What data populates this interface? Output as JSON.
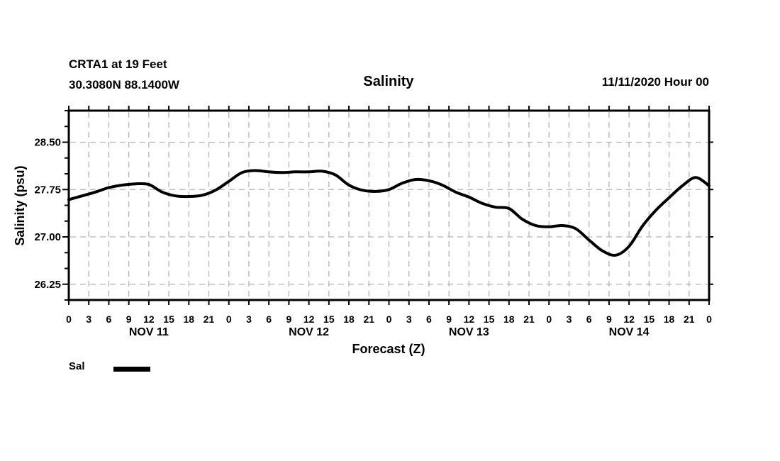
{
  "header": {
    "station_line1": "CRTA1 at 19 Feet",
    "station_line2": "30.3080N 88.1400W",
    "title": "Salinity",
    "datetime": "11/11/2020 Hour 00"
  },
  "axes": {
    "ylabel": "Salinity (psu)",
    "xlabel": "Forecast (Z)"
  },
  "legend": {
    "label": "Sal",
    "swatch_color": "#000000"
  },
  "colors": {
    "line": "#000000",
    "grid": "#b3b3b3",
    "frame": "#000000",
    "background": "#ffffff"
  },
  "chart_data": {
    "type": "line",
    "title": "Salinity",
    "xlabel": "Forecast (Z)",
    "ylabel": "Salinity (psu)",
    "ylim": [
      26.0,
      29.0
    ],
    "xlim_hours": [
      0,
      96
    ],
    "grid": true,
    "legend_position": "bottom-left",
    "y_major_ticks": [
      26.25,
      27.0,
      27.75,
      28.5
    ],
    "y_major_tick_labels": [
      "26.25",
      "27.00",
      "27.75",
      "28.50"
    ],
    "y_minor_step": 0.25,
    "x_tick_step_hours": 3,
    "x_ticks_hours": [
      0,
      3,
      6,
      9,
      12,
      15,
      18,
      21,
      24,
      27,
      30,
      33,
      36,
      39,
      42,
      45,
      48,
      51,
      54,
      57,
      60,
      63,
      66,
      69,
      72,
      75,
      78,
      81,
      84,
      87,
      90,
      93,
      96
    ],
    "x_tick_labels": [
      "0",
      "3",
      "6",
      "9",
      "12",
      "15",
      "18",
      "21",
      "0",
      "3",
      "6",
      "9",
      "12",
      "15",
      "18",
      "21",
      "0",
      "3",
      "6",
      "9",
      "12",
      "15",
      "18",
      "21",
      "0",
      "3",
      "6",
      "9",
      "12",
      "15",
      "18",
      "21",
      "0"
    ],
    "day_labels": [
      {
        "label": "NOV 11",
        "hour": 12
      },
      {
        "label": "NOV 12",
        "hour": 36
      },
      {
        "label": "NOV 13",
        "hour": 60
      },
      {
        "label": "NOV 14",
        "hour": 84
      }
    ],
    "series": [
      {
        "name": "Sal",
        "color": "#000000",
        "line_width": 4,
        "x_hours": [
          0,
          2,
          4,
          6,
          8,
          10,
          12,
          14,
          16,
          18,
          20,
          22,
          24,
          26,
          28,
          30,
          32,
          34,
          36,
          38,
          40,
          42,
          44,
          46,
          48,
          50,
          52,
          54,
          56,
          58,
          60,
          62,
          64,
          66,
          68,
          70,
          72,
          74,
          76,
          78,
          80,
          82,
          84,
          86,
          88,
          90,
          92,
          94,
          96
        ],
        "y_psu": [
          27.59,
          27.65,
          27.71,
          27.78,
          27.82,
          27.84,
          27.83,
          27.71,
          27.65,
          27.64,
          27.66,
          27.74,
          27.88,
          28.02,
          28.05,
          28.03,
          28.02,
          28.03,
          28.03,
          28.04,
          27.98,
          27.82,
          27.74,
          27.72,
          27.75,
          27.85,
          27.91,
          27.89,
          27.82,
          27.71,
          27.63,
          27.53,
          27.47,
          27.45,
          27.28,
          27.18,
          27.16,
          27.18,
          27.13,
          26.95,
          26.78,
          26.71,
          26.85,
          27.17,
          27.42,
          27.62,
          27.81,
          27.94,
          27.81
        ]
      }
    ]
  }
}
